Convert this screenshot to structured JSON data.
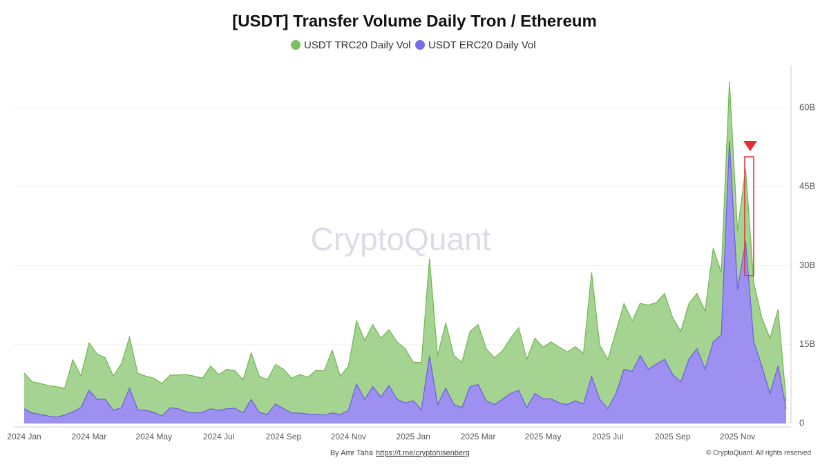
{
  "chart_data": {
    "type": "area",
    "title": "[USDT] Transfer Volume Daily Tron / Ethereum",
    "watermark": "CryptoQuant",
    "footer": {
      "author": "By Amr Taha",
      "link": "https://t.me/cryptohisenberg",
      "copyright": "© CryptoQuant. All rights reserved"
    },
    "categories": [
      "2024 Jan",
      null,
      null,
      null,
      null,
      null,
      null,
      null,
      "2024 Mar",
      null,
      null,
      null,
      null,
      null,
      null,
      null,
      "2024 May",
      null,
      null,
      null,
      null,
      null,
      null,
      null,
      "2024 Jul",
      null,
      null,
      null,
      null,
      null,
      null,
      null,
      "2024 Sep",
      null,
      null,
      null,
      null,
      null,
      null,
      null,
      "2024 Nov",
      null,
      null,
      null,
      null,
      null,
      null,
      null,
      "2025 Jan",
      null,
      null,
      null,
      null,
      null,
      null,
      null,
      "2025 Mar",
      null,
      null,
      null,
      null,
      null,
      null,
      null,
      "2025 May",
      null,
      null,
      null,
      null,
      null,
      null,
      null,
      "2025 Jul",
      null,
      null,
      null,
      null,
      null,
      null,
      null,
      "2025 Sep",
      null,
      null,
      null,
      null,
      null,
      null,
      null,
      "2025 Nov",
      null,
      null,
      null,
      null,
      null,
      null
    ],
    "series": [
      {
        "name": "USDT TRC20 Daily Vol",
        "color": "#6cb84f",
        "fill": "#a5d391",
        "values": [
          9.6,
          7.9,
          7.6,
          7.2,
          7.0,
          6.7,
          12.1,
          9.0,
          15.3,
          13.2,
          12.5,
          9.0,
          11.4,
          16.4,
          9.6,
          9.0,
          8.6,
          7.6,
          9.2,
          9.2,
          9.3,
          9.0,
          8.6,
          10.9,
          9.3,
          10.3,
          10.0,
          8.3,
          13.4,
          9.0,
          8.3,
          11.2,
          10.3,
          8.6,
          9.3,
          8.8,
          10.1,
          10.0,
          13.9,
          9.0,
          10.9,
          19.5,
          15.8,
          18.8,
          16.2,
          17.8,
          15.5,
          14.2,
          11.6,
          11.6,
          31.3,
          12.9,
          19.1,
          12.9,
          11.6,
          17.5,
          18.8,
          14.2,
          12.5,
          13.8,
          16.2,
          18.2,
          12.2,
          16.2,
          14.5,
          15.5,
          14.5,
          13.6,
          14.6,
          13.3,
          28.7,
          14.9,
          12.2,
          17.5,
          22.8,
          19.5,
          22.8,
          22.5,
          23.0,
          24.7,
          20.1,
          17.5,
          22.8,
          24.7,
          21.4,
          33.3,
          28.7,
          65.0,
          36.6,
          48.4,
          26.7,
          20.1,
          16.2,
          21.7,
          4.3
        ]
      },
      {
        "name": "USDT ERC20 Daily Vol",
        "color": "#6a5ce0",
        "fill": "#9d90f0",
        "values": [
          2.8,
          2.0,
          1.7,
          1.4,
          1.2,
          1.6,
          2.2,
          3.0,
          6.3,
          4.6,
          4.6,
          2.5,
          3.0,
          6.7,
          2.6,
          2.5,
          2.1,
          1.4,
          3.0,
          2.8,
          2.2,
          2.0,
          2.1,
          2.8,
          2.5,
          2.8,
          2.9,
          2.0,
          4.6,
          2.1,
          1.7,
          3.7,
          2.8,
          2.0,
          2.0,
          1.8,
          1.7,
          1.6,
          2.0,
          1.7,
          2.5,
          7.5,
          4.6,
          7.0,
          5.0,
          7.2,
          4.6,
          3.9,
          4.3,
          2.6,
          12.8,
          3.6,
          6.7,
          3.6,
          3.0,
          7.0,
          7.4,
          4.3,
          3.6,
          4.6,
          5.7,
          6.3,
          3.0,
          5.7,
          4.7,
          4.7,
          3.9,
          3.6,
          4.3,
          3.7,
          8.9,
          4.6,
          2.8,
          5.7,
          10.3,
          9.9,
          12.9,
          10.3,
          11.3,
          12.2,
          9.3,
          7.9,
          12.2,
          14.2,
          10.3,
          15.5,
          16.8,
          53.7,
          25.4,
          34.6,
          15.5,
          10.9,
          5.7,
          10.9,
          2.8
        ]
      }
    ],
    "stacked": false,
    "ylim": [
      0,
      68
    ],
    "yticks": [
      {
        "value": 0,
        "label": "0"
      },
      {
        "value": 15,
        "label": "15B"
      },
      {
        "value": 30,
        "label": "30B"
      },
      {
        "value": 45,
        "label": "45B"
      },
      {
        "value": 60,
        "label": "60B"
      }
    ],
    "y_axis_side": "right",
    "grid": true,
    "legend": "top"
  }
}
